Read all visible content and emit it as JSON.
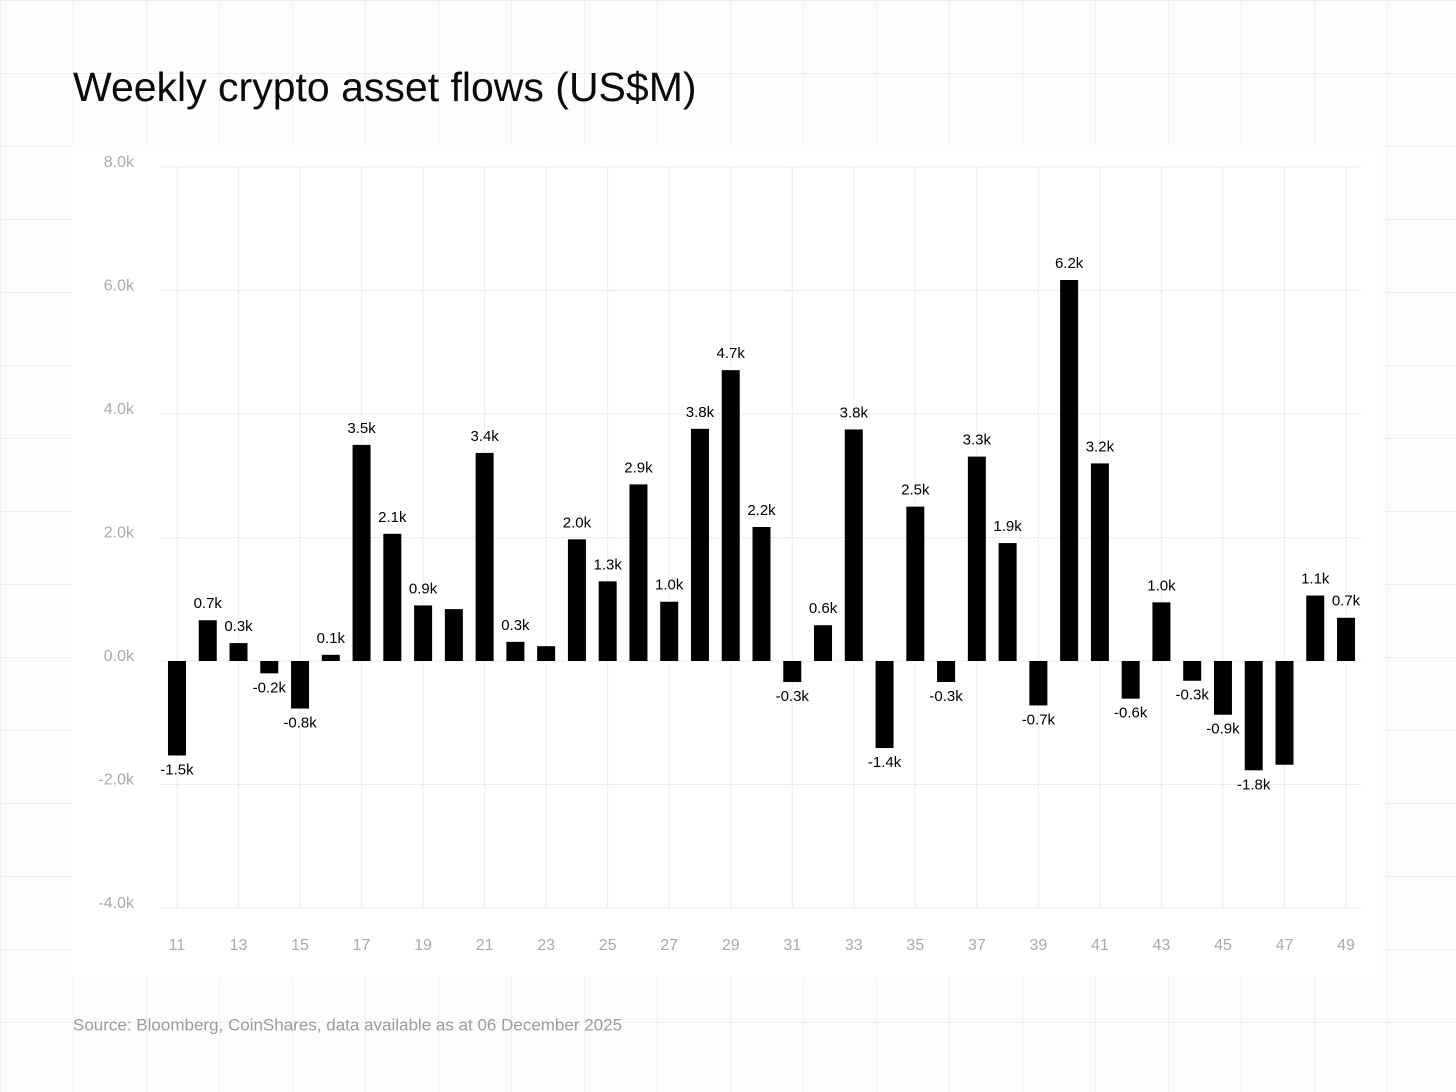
{
  "chart_data": {
    "type": "bar",
    "title": "Weekly crypto asset flows (US$M)",
    "source": "Source: Bloomberg, CoinShares, data available as at 06 December 2025",
    "categories": [
      "11",
      null,
      "13",
      null,
      "15",
      null,
      "17",
      null,
      "19",
      null,
      "21",
      null,
      "23",
      null,
      "25",
      null,
      "27",
      null,
      "29",
      null,
      "31",
      null,
      "33",
      null,
      "35",
      null,
      "37",
      null,
      "39",
      null,
      "41",
      null,
      "43",
      null,
      "45",
      null,
      "47",
      null,
      "49"
    ],
    "values": [
      -1530,
      660,
      290,
      -200,
      -770,
      100,
      3500,
      2060,
      900,
      840,
      3370,
      310,
      240,
      1970,
      1290,
      2860,
      960,
      3760,
      4710,
      2170,
      -340,
      580,
      3750,
      -1410,
      2500,
      -340,
      3310,
      1910,
      -720,
      6170,
      3200,
      -610,
      950,
      -320,
      -870,
      -1770,
      -1680,
      1060,
      700
    ],
    "value_labels": [
      "-1.5k",
      "0.7k",
      "0.3k",
      "-0.2k",
      "-0.8k",
      "0.1k",
      "3.5k",
      "2.1k",
      "0.9k",
      null,
      "3.4k",
      "0.3k",
      null,
      "2.0k",
      "1.3k",
      "2.9k",
      "1.0k",
      "3.8k",
      "4.7k",
      "2.2k",
      "-0.3k",
      "0.6k",
      "3.8k",
      "-1.4k",
      "2.5k",
      "-0.3k",
      "3.3k",
      "1.9k",
      "-0.7k",
      "6.2k",
      "3.2k",
      "-0.6k",
      "1.0k",
      "-0.3k",
      "-0.9k",
      "-1.8k",
      null,
      "1.1k",
      "0.7k"
    ],
    "color": "#000000",
    "ylim": [
      -4000,
      8000
    ],
    "yticks": [
      {
        "value": -4000,
        "label": "-4.0k"
      },
      {
        "value": -2000,
        "label": "-2.0k"
      },
      {
        "value": 0,
        "label": "0.0k"
      },
      {
        "value": 2000,
        "label": "2.0k"
      },
      {
        "value": 4000,
        "label": "4.0k"
      },
      {
        "value": 6000,
        "label": "6.0k"
      },
      {
        "value": 8000,
        "label": "8.0k"
      }
    ],
    "grid": true
  }
}
